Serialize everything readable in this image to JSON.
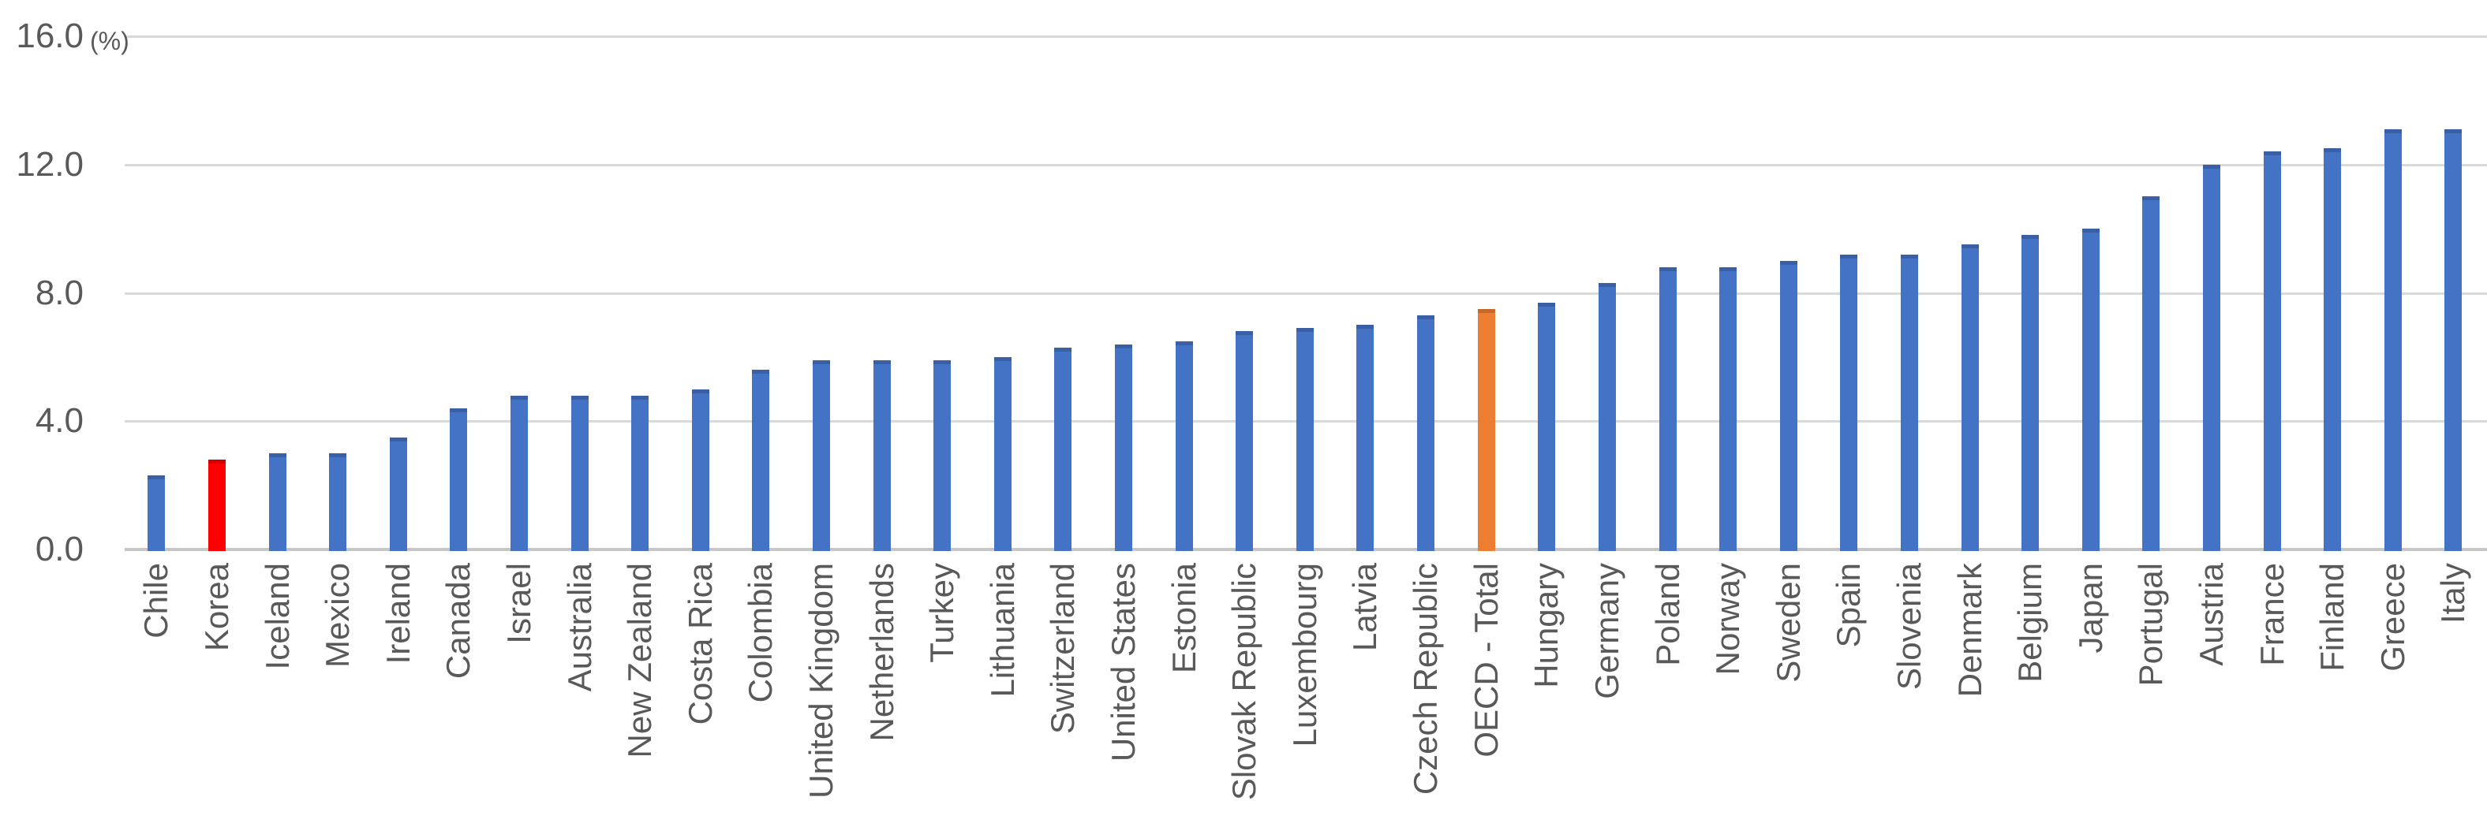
{
  "chart_data": {
    "type": "bar",
    "title": "",
    "unit_label": "(%)",
    "ylim": [
      0,
      16
    ],
    "yticks": [
      0,
      4,
      8,
      12,
      16
    ],
    "ytick_labels": [
      "0.0",
      "4.0",
      "8.0",
      "12.0",
      "16.0"
    ],
    "grid": true,
    "legend": "none",
    "categories": [
      "Chile",
      "Korea",
      "Iceland",
      "Mexico",
      "Ireland",
      "Canada",
      "Israel",
      "Australia",
      "New Zealand",
      "Costa Rica",
      "Colombia",
      "United Kingdom",
      "Netherlands",
      "Turkey",
      "Lithuania",
      "Switzerland",
      "United States",
      "Estonia",
      "Slovak Republic",
      "Luxembourg",
      "Latvia",
      "Czech Republic",
      "OECD - Total",
      "Hungary",
      "Germany",
      "Poland",
      "Norway",
      "Sweden",
      "Spain",
      "Slovenia",
      "Denmark",
      "Belgium",
      "Japan",
      "Portugal",
      "Austria",
      "France",
      "Finland",
      "Greece",
      "Italy"
    ],
    "values": [
      2.3,
      2.8,
      3.0,
      3.0,
      3.5,
      4.4,
      4.8,
      4.8,
      4.8,
      5.0,
      5.6,
      5.9,
      5.9,
      5.9,
      6.0,
      6.3,
      6.4,
      6.5,
      6.8,
      6.9,
      7.0,
      7.3,
      7.5,
      7.7,
      8.3,
      8.8,
      8.8,
      9.0,
      9.2,
      9.2,
      9.5,
      9.8,
      10.0,
      11.0,
      12.0,
      12.4,
      12.5,
      13.1,
      13.1
    ],
    "default_bar_color": "#4472c4",
    "highlights": [
      {
        "category": "Korea",
        "color": "#ff0000"
      },
      {
        "category": "OECD - Total",
        "color": "#ed7d31"
      }
    ]
  },
  "colors": {
    "gridline": "#d9d9d9",
    "axis_line": "#c6c6c6",
    "text": "#595959",
    "background": "#ffffff"
  }
}
